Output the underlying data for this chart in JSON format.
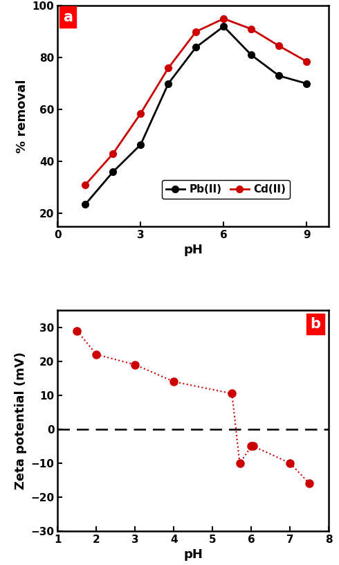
{
  "panel_a": {
    "pb_x": [
      1,
      2,
      3,
      4,
      5,
      6,
      7,
      8,
      9
    ],
    "pb_y": [
      23.5,
      36,
      46.5,
      70,
      84,
      92,
      81,
      73,
      70
    ],
    "cd_x": [
      1,
      2,
      3,
      4,
      5,
      6,
      7,
      8,
      9
    ],
    "cd_y": [
      31,
      43,
      58.5,
      76,
      90,
      95,
      91,
      84.5,
      78.5
    ],
    "pb_color": "#000000",
    "cd_color": "#cc0000",
    "ylabel": "% removal",
    "xlabel": "pH",
    "ylim": [
      15,
      100
    ],
    "xlim": [
      0,
      9.8
    ],
    "xticks": [
      0,
      3,
      6,
      9
    ],
    "yticks": [
      20,
      40,
      60,
      80,
      100
    ],
    "label": "a"
  },
  "panel_b": {
    "zeta_x": [
      1.5,
      2.0,
      3.0,
      4.0,
      5.5,
      5.7,
      6.0,
      6.05,
      7.0,
      7.5
    ],
    "zeta_y": [
      29,
      22,
      19,
      14,
      10.5,
      -10,
      -5,
      -5,
      -10,
      -16
    ],
    "color": "#cc0000",
    "ylabel": "Zeta potential (mV)",
    "xlabel": "pH",
    "ylim": [
      -30,
      35
    ],
    "xlim": [
      1,
      8
    ],
    "xticks": [
      1,
      2,
      3,
      4,
      5,
      6,
      7,
      8
    ],
    "yticks": [
      -30,
      -20,
      -10,
      0,
      10,
      20,
      30
    ],
    "label": "b"
  }
}
